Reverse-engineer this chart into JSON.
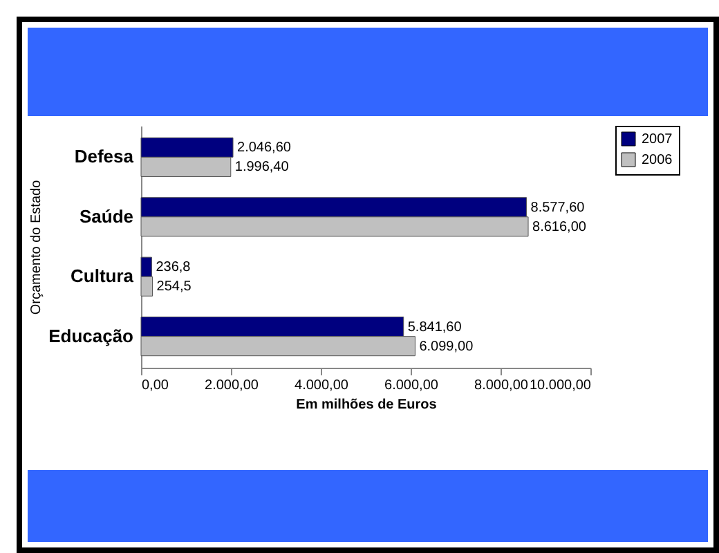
{
  "chart_data": {
    "type": "bar",
    "orientation": "horizontal",
    "categories": [
      "Defesa",
      "Saúde",
      "Cultura",
      "Educação"
    ],
    "series": [
      {
        "name": "2007",
        "color": "#00007f",
        "values": [
          2046.6,
          8577.6,
          236.8,
          5841.6
        ],
        "value_labels": [
          "2.046,60",
          "8.577,60",
          "236,8",
          "5.841,60"
        ]
      },
      {
        "name": "2006",
        "color": "#c0c0c0",
        "values": [
          1996.4,
          8616,
          254.5,
          6099
        ],
        "value_labels": [
          "1.996,40",
          "8.616,00",
          "254,5",
          "6.099,00"
        ]
      }
    ],
    "xlim": [
      0,
      10000
    ],
    "xticks": [
      {
        "value": 0,
        "label": "0,00"
      },
      {
        "value": 2000,
        "label": "2.000,00"
      },
      {
        "value": 4000,
        "label": "4.000,00"
      },
      {
        "value": 6000,
        "label": "6.000,00"
      },
      {
        "value": 8000,
        "label": "8.000,00"
      },
      {
        "value": 10000,
        "label": "10.000,00"
      }
    ],
    "xlabel": "Em milhões de Euros",
    "ylabel": "Orçamento do Estado",
    "legend": "right",
    "grid": false
  }
}
